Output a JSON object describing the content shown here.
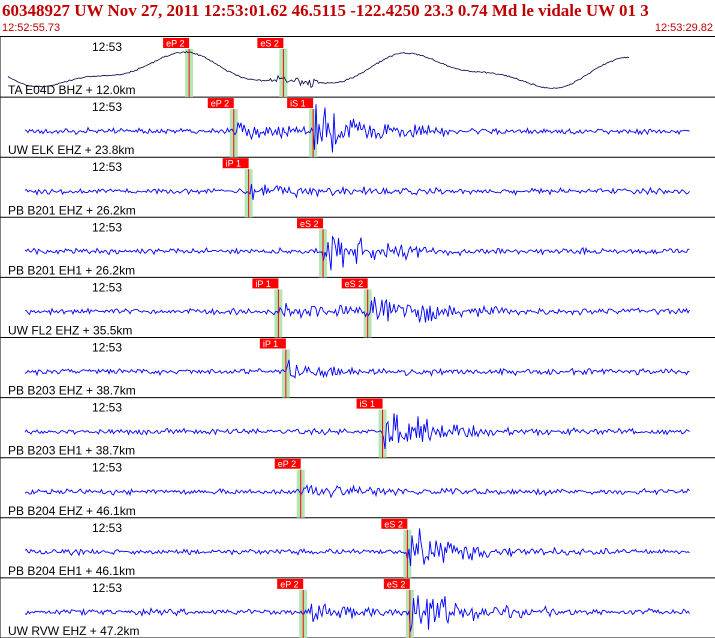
{
  "header": {
    "title": "60348927 UW Nov 27, 2011 12:53:01.62    46.5115 -122.4250 23.3 0.74 Md le vidale UW 01    3",
    "start_time": "12:52:55.73",
    "end_time": "12:53:29.82"
  },
  "colors": {
    "title": "#c00000",
    "trace": "#0000ff",
    "pick_box": "#ff0000",
    "pick_window": "#a8e0a8"
  },
  "traces": [
    {
      "time_label": "12:53",
      "station_label": "TA E04D BHZ + 12.0km",
      "kind": "long",
      "picks": [
        {
          "label": "eP 2",
          "time": 4.4
        },
        {
          "label": "eS 2",
          "time": 8.2
        }
      ]
    },
    {
      "time_label": "12:53",
      "station_label": "UW ELK EHZ + 23.8km",
      "kind": "short",
      "picks": [
        {
          "label": "eP 2",
          "time": 6.2
        },
        {
          "label": "iS 1",
          "time": 9.4
        }
      ]
    },
    {
      "time_label": "12:53",
      "station_label": "PB B201 EHZ + 26.2km",
      "kind": "short",
      "picks": [
        {
          "label": "iP 1",
          "time": 6.8
        }
      ]
    },
    {
      "time_label": "12:53",
      "station_label": "PB B201 EH1 + 26.2km",
      "kind": "short",
      "picks": [
        {
          "label": "eS 2",
          "time": 9.8
        }
      ]
    },
    {
      "time_label": "12:53",
      "station_label": "UW FL2 EHZ + 35.5km",
      "kind": "short",
      "picks": [
        {
          "label": "iP 1",
          "time": 8.0
        },
        {
          "label": "eS 2",
          "time": 11.6
        }
      ]
    },
    {
      "time_label": "12:53",
      "station_label": "PB B203 EHZ + 38.7km",
      "kind": "short",
      "picks": [
        {
          "label": "iP 1",
          "time": 8.3
        }
      ]
    },
    {
      "time_label": "12:53",
      "station_label": "PB B203 EH1 + 38.7km",
      "kind": "short",
      "picks": [
        {
          "label": "iS 1",
          "time": 12.2
        }
      ]
    },
    {
      "time_label": "12:53",
      "station_label": "PB B204 EHZ + 46.1km",
      "kind": "short",
      "picks": [
        {
          "label": "eP 2",
          "time": 8.9
        }
      ]
    },
    {
      "time_label": "12:53",
      "station_label": "PB B204 EH1 + 46.1km",
      "kind": "short",
      "picks": [
        {
          "label": "eS 2",
          "time": 13.2
        }
      ]
    },
    {
      "time_label": "12:53",
      "station_label": "UW RVW EHZ + 47.2km",
      "kind": "short",
      "picks": [
        {
          "label": "eP 2",
          "time": 9.0
        },
        {
          "label": "eS 2",
          "time": 13.3
        }
      ]
    }
  ]
}
